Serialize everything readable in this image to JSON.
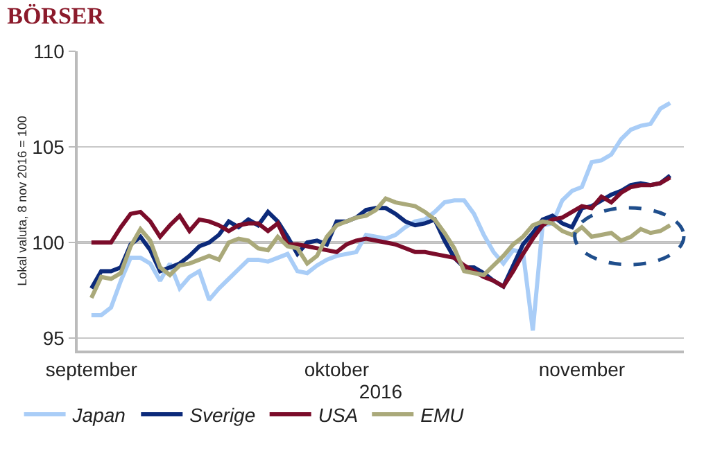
{
  "chart_data": {
    "type": "line",
    "title": "BÖRSER",
    "ylabel": "Lokal valuta, 8 nov 2016 = 100",
    "xlabel": "2016",
    "categories": [
      "september",
      null,
      null,
      null,
      null,
      null,
      null,
      null,
      null,
      null,
      null,
      null,
      null,
      null,
      null,
      null,
      null,
      null,
      null,
      null,
      null,
      null,
      null,
      null,
      null,
      "oktober",
      null,
      null,
      null,
      null,
      null,
      null,
      null,
      null,
      null,
      null,
      null,
      null,
      null,
      null,
      null,
      null,
      null,
      null,
      null,
      null,
      null,
      null,
      null,
      null,
      "november",
      null,
      null,
      null,
      null,
      null,
      null,
      null,
      null,
      null
    ],
    "series": [
      {
        "name": "Japan",
        "color": "#a9cdf7",
        "values": [
          96.2,
          96.2,
          96.6,
          98,
          99.2,
          99.2,
          98.9,
          98,
          98.9,
          97.6,
          98.2,
          98.5,
          97,
          97.6,
          98.1,
          98.6,
          99.1,
          99.1,
          99,
          99.2,
          99.4,
          98.5,
          98.4,
          98.8,
          99.1,
          99.3,
          99.4,
          99.5,
          100.4,
          100.3,
          100.2,
          100.4,
          100.8,
          101.1,
          101.2,
          101.6,
          102.1,
          102.2,
          102.2,
          101.5,
          100.4,
          99.5,
          98.9,
          99.6,
          99.5,
          95.4,
          100.9,
          101,
          102.2,
          102.7,
          102.9,
          104.2,
          104.3,
          104.6,
          105.4,
          105.9,
          106.1,
          106.2,
          107,
          107.3
        ]
      },
      {
        "name": "Sverige",
        "color": "#0c2a7a",
        "values": [
          97.6,
          98.5,
          98.5,
          98.7,
          99.9,
          100.3,
          99.6,
          98.5,
          98.7,
          98.9,
          99.3,
          99.8,
          100,
          100.4,
          101.1,
          100.8,
          101.2,
          100.9,
          101.6,
          101.1,
          100.3,
          99.4,
          100,
          100.1,
          99.9,
          101.1,
          101.1,
          101.3,
          101.7,
          101.8,
          101.8,
          101.5,
          101.1,
          100.9,
          101,
          101.2,
          100.1,
          99.2,
          98.7,
          98.7,
          98.4,
          98,
          97.7,
          98.8,
          99.9,
          100.5,
          101.2,
          101.4,
          101,
          100.8,
          101.8,
          101.9,
          102.2,
          102.5,
          102.7,
          103,
          103.1,
          103,
          103.1,
          103.5
        ]
      },
      {
        "name": "USA",
        "color": "#7b0c2a",
        "values": [
          100,
          100,
          100,
          100.8,
          101.5,
          101.6,
          101.1,
          100.3,
          100.9,
          101.4,
          100.6,
          101.2,
          101.1,
          100.9,
          100.6,
          100.9,
          101,
          101,
          100.6,
          101,
          99.9,
          99.9,
          99.8,
          99.7,
          99.6,
          99.5,
          99.9,
          100.1,
          100.2,
          100.1,
          100,
          99.9,
          99.7,
          99.5,
          99.5,
          99.4,
          99.3,
          99.2,
          98.8,
          98.5,
          98.2,
          98,
          97.7,
          98.5,
          99.4,
          100.2,
          100.9,
          101.2,
          101.3,
          101.6,
          101.9,
          101.8,
          102.4,
          102.1,
          102.6,
          102.9,
          103,
          103,
          103.1,
          103.4
        ]
      },
      {
        "name": "EMU",
        "color": "#aaa97a",
        "values": [
          97.1,
          98.2,
          98.1,
          98.4,
          99.8,
          100.7,
          100.1,
          98.7,
          98.3,
          98.8,
          98.9,
          99.1,
          99.3,
          99.1,
          100,
          100.2,
          100.1,
          99.7,
          99.6,
          100.3,
          99.8,
          99.7,
          98.9,
          99.3,
          100.3,
          100.9,
          101.1,
          101.3,
          101.4,
          101.7,
          102.3,
          102.1,
          102,
          101.9,
          101.6,
          101.2,
          100.5,
          99.7,
          98.5,
          98.4,
          98.3,
          98.8,
          99.3,
          99.9,
          100.3,
          100.9,
          101.1,
          101,
          100.6,
          100.4,
          100.8,
          100.3,
          100.4,
          100.5,
          100.1,
          100.3,
          100.7,
          100.5,
          100.6,
          100.9
        ]
      }
    ],
    "ylim": [
      94.35,
      110
    ],
    "yticks": [
      95,
      100,
      105,
      110
    ],
    "ref_lines": [
      {
        "axis": "y",
        "value": 100,
        "color": "#000000"
      }
    ],
    "grid": "y",
    "legend": "bottom",
    "marker": "none",
    "line_style": "solid"
  }
}
